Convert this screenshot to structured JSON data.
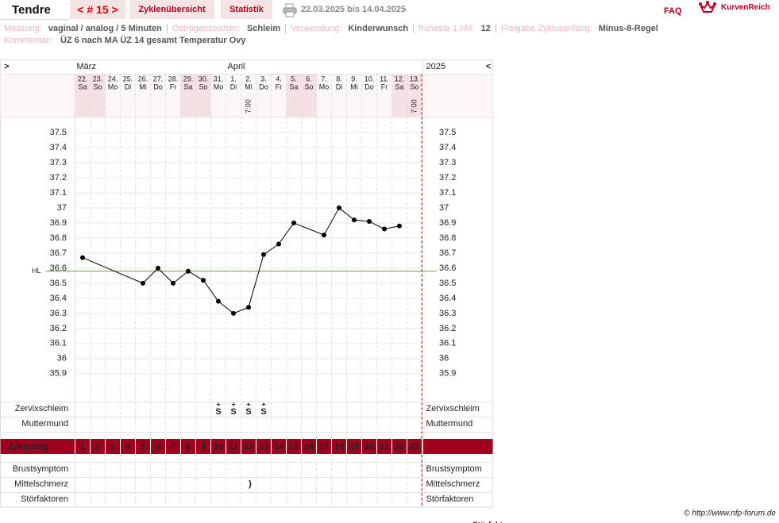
{
  "header": {
    "name": "Tendre",
    "cycle": "< # 15 >",
    "tabs": [
      "Zyklenübersicht",
      "Statistik"
    ],
    "period": "22.03.2025 bis 14.04.2025",
    "faq": "FAQ",
    "logo": "KurvenReich"
  },
  "info": {
    "fields": [
      {
        "label": "Messung:",
        "value": "vaginal / analog / 5 Minuten"
      },
      {
        "label": "Östrogenzeichen:",
        "value": "Schleim"
      },
      {
        "label": "Verwendung:",
        "value": "Kinderwunsch"
      },
      {
        "label": "früheste 1.hM:",
        "value": "12"
      },
      {
        "label": "Freigabe Zyklusanfang:",
        "value": "Minus-8-Regel"
      }
    ],
    "comment": {
      "label": "Kommentar:",
      "value": "ÜZ 6 nach MA ÜZ 14 gesamt Temperatur Ovy"
    }
  },
  "navigation": {
    "left": ">",
    "right": "<"
  },
  "chart_data": {
    "type": "line",
    "year": "2025",
    "month_labels": [
      "März",
      null,
      null,
      null,
      null,
      null,
      null,
      null,
      null,
      null,
      "April",
      null,
      null,
      null,
      null,
      null,
      null,
      null,
      null,
      null,
      null,
      null,
      null
    ],
    "categories": [
      "22.",
      "23.",
      "24.",
      "25.",
      "26.",
      "27.",
      "28.",
      "29.",
      "30.",
      "31.",
      "1.",
      "2.",
      "3.",
      "4.",
      "5.",
      "6.",
      "7.",
      "8.",
      "9.",
      "10.",
      "11.",
      "12.",
      "13."
    ],
    "weekdays": [
      "Sa",
      "So",
      "Mo",
      "Di",
      "Mi",
      "Do",
      "Fr",
      "Sa",
      "So",
      "Mo",
      "Di",
      "Mi",
      "Do",
      "Fr",
      "Sa",
      "So",
      "Mo",
      "Di",
      "Mi",
      "Do",
      "Fr",
      "Sa",
      "So"
    ],
    "weekend": [
      true,
      true,
      false,
      false,
      false,
      false,
      false,
      true,
      true,
      false,
      false,
      false,
      false,
      false,
      true,
      true,
      false,
      false,
      false,
      false,
      false,
      true,
      true
    ],
    "times": [
      null,
      null,
      null,
      null,
      null,
      null,
      null,
      null,
      null,
      null,
      null,
      "7:00",
      null,
      null,
      null,
      null,
      null,
      null,
      null,
      null,
      null,
      null,
      "7:00"
    ],
    "values": [
      36.67,
      null,
      null,
      null,
      36.5,
      36.6,
      36.5,
      36.58,
      36.52,
      36.38,
      36.3,
      36.34,
      36.69,
      36.76,
      36.9,
      null,
      36.82,
      37,
      36.92,
      36.91,
      36.86,
      36.88,
      null
    ],
    "color": "#000000",
    "ylim": [
      35.72,
      37.6
    ],
    "yticks": [
      35.9,
      36,
      36.1,
      36.2,
      36.3,
      36.4,
      36.5,
      36.6,
      36.7,
      36.8,
      36.9,
      37,
      37.1,
      37.2,
      37.3,
      37.4,
      37.5
    ],
    "grid": true,
    "coverline": {
      "label": "HL",
      "value": 36.58,
      "color": "#6b9b3a"
    },
    "rows": {
      "zervix": {
        "label": "Zervixschleim",
        "color": "#e07800",
        "marks": [
          null,
          null,
          null,
          null,
          null,
          null,
          null,
          null,
          null,
          {
            "sign": "+",
            "letter": "S"
          },
          {
            "sign": "+",
            "letter": "S"
          },
          {
            "sign": "+",
            "letter": "S"
          },
          {
            "sign": "+",
            "letter": "S"
          },
          null,
          null,
          null,
          null,
          null,
          null,
          null,
          null,
          null,
          null
        ]
      },
      "muttermund": {
        "label": "Muttermund",
        "color": "#4a62c0"
      },
      "zyklustag": {
        "label": "Zyklustag",
        "days": [
          1,
          2,
          3,
          4,
          5,
          6,
          7,
          8,
          9,
          10,
          11,
          12,
          13,
          14,
          15,
          16,
          17,
          18,
          19,
          20,
          21,
          22,
          23
        ]
      },
      "brust": {
        "label": "Brustsymptom"
      },
      "mittel": {
        "label": "Mittelschmerz",
        "marks": [
          null,
          null,
          null,
          null,
          null,
          null,
          null,
          null,
          null,
          null,
          null,
          ")",
          null,
          null,
          null,
          null,
          null,
          null,
          null,
          null,
          null,
          null,
          null
        ]
      },
      "stoer": {
        "label": "Störfaktoren"
      }
    }
  },
  "footer": {
    "copyright": "© http://www.nfp-forum.de",
    "cut_label": "Störfaktoren"
  }
}
